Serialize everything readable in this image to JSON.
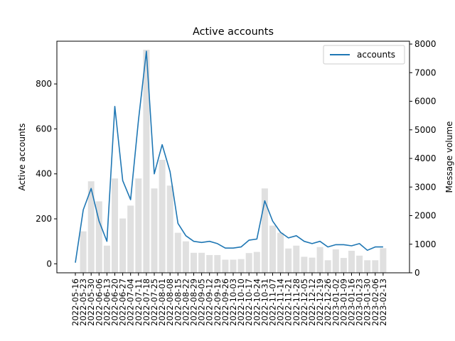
{
  "chart_data": {
    "type": "bar",
    "title": "Active accounts",
    "ylabel": "Active accounts",
    "y2label": "Message volume",
    "ylim": [
      -40,
      990
    ],
    "y2lim": [
      0,
      8100
    ],
    "yticks": [
      0,
      200,
      400,
      600,
      800
    ],
    "y2ticks": [
      0,
      1000,
      2000,
      3000,
      4000,
      5000,
      6000,
      7000,
      8000
    ],
    "legend_position": "upper right",
    "x": [
      "2022-05-16",
      "2022-05-23",
      "2022-05-30",
      "2022-06-06",
      "2022-06-13",
      "2022-06-20",
      "2022-06-27",
      "2022-07-04",
      "2022-07-11",
      "2022-07-18",
      "2022-07-25",
      "2022-08-01",
      "2022-08-08",
      "2022-08-15",
      "2022-08-22",
      "2022-08-29",
      "2022-09-05",
      "2022-09-12",
      "2022-09-19",
      "2022-09-26",
      "2022-10-03",
      "2022-10-10",
      "2022-10-17",
      "2022-10-24",
      "2022-10-31",
      "2022-11-07",
      "2022-11-14",
      "2022-11-21",
      "2022-11-28",
      "2022-12-05",
      "2022-12-12",
      "2022-12-19",
      "2022-12-26",
      "2023-01-02",
      "2023-01-09",
      "2023-01-16",
      "2023-01-23",
      "2023-01-30",
      "2023-02-06",
      "2023-02-13"
    ],
    "series": [
      {
        "name": "accounts",
        "kind": "line",
        "axis": "left",
        "color": "#1f77b4",
        "values": [
          5,
          240,
          335,
          190,
          100,
          700,
          370,
          285,
          640,
          945,
          400,
          530,
          410,
          180,
          125,
          100,
          95,
          100,
          90,
          70,
          70,
          75,
          105,
          110,
          280,
          190,
          140,
          115,
          125,
          100,
          90,
          100,
          75,
          85,
          85,
          80,
          90,
          60,
          75,
          75
        ]
      },
      {
        "name": "Message volume",
        "kind": "bar",
        "axis": "right",
        "color": "#e0e0e0",
        "values": [
          0,
          1450,
          3200,
          2500,
          950,
          3300,
          1900,
          2350,
          3300,
          7800,
          2950,
          3950,
          3050,
          1400,
          1100,
          700,
          700,
          620,
          620,
          460,
          460,
          480,
          690,
          730,
          2950,
          1650,
          1400,
          850,
          950,
          560,
          530,
          900,
          440,
          820,
          520,
          770,
          600,
          440,
          440,
          860
        ]
      }
    ]
  }
}
